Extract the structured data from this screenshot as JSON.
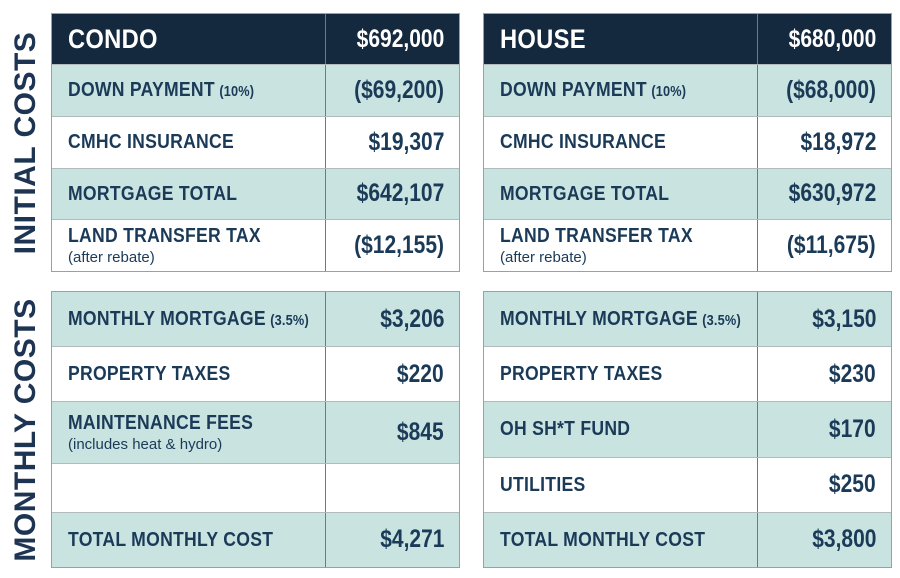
{
  "colors": {
    "header_bg": "#14293d",
    "header_text": "#ffffff",
    "teal_row": "#c9e3e0",
    "white_row": "#ffffff",
    "cell_text": "#1a3a58",
    "section_label_text": "#1d3453",
    "outer_border": "#97a2a4",
    "row_line": "#b1bbbb",
    "column_divider": "#70797c"
  },
  "sections": {
    "initial": {
      "label": "INITIAL COSTS"
    },
    "monthly": {
      "label": "MONTHLY COSTS"
    }
  },
  "tables": {
    "condo_initial": {
      "title": "CONDO",
      "price": "$692,000",
      "rows": [
        {
          "label": "DOWN PAYMENT",
          "note": "(10%)",
          "value": "($69,200)"
        },
        {
          "label": "CMHC INSURANCE",
          "value": "$19,307"
        },
        {
          "label": "MORTGAGE TOTAL",
          "value": "$642,107"
        },
        {
          "label": "LAND TRANSFER TAX",
          "sub": "(after rebate)",
          "value": "($12,155)"
        }
      ]
    },
    "house_initial": {
      "title": "HOUSE",
      "price": "$680,000",
      "rows": [
        {
          "label": "DOWN PAYMENT",
          "note": "(10%)",
          "value": "($68,000)"
        },
        {
          "label": "CMHC INSURANCE",
          "value": "$18,972"
        },
        {
          "label": "MORTGAGE TOTAL",
          "value": "$630,972"
        },
        {
          "label": "LAND TRANSFER TAX",
          "sub": "(after rebate)",
          "value": "($11,675)"
        }
      ]
    },
    "condo_monthly": {
      "rows": [
        {
          "label": "MONTHLY MORTGAGE",
          "note": "(3.5%)",
          "value": "$3,206"
        },
        {
          "label": "PROPERTY TAXES",
          "value": "$220"
        },
        {
          "label": "MAINTENANCE FEES",
          "sub": "(includes heat & hydro)",
          "value": "$845"
        },
        {
          "label": "",
          "value": ""
        },
        {
          "label": "TOTAL MONTHLY COST",
          "value": "$4,271"
        }
      ]
    },
    "house_monthly": {
      "rows": [
        {
          "label": "MONTHLY MORTGAGE",
          "note": "(3.5%)",
          "value": "$3,150"
        },
        {
          "label": "PROPERTY TAXES",
          "value": "$230"
        },
        {
          "label": "OH SH*T FUND",
          "value": "$170"
        },
        {
          "label": "UTILITIES",
          "value": "$250"
        },
        {
          "label": "TOTAL MONTHLY COST",
          "value": "$3,800"
        }
      ]
    }
  },
  "chart_data": [
    {
      "type": "table",
      "section": "INITIAL COSTS",
      "columns": [
        "CONDO",
        "HOUSE"
      ],
      "header_values": [
        "$692,000",
        "$680,000"
      ],
      "rows": [
        {
          "label": "DOWN PAYMENT (10%)",
          "condo": "($69,200)",
          "house": "($68,000)"
        },
        {
          "label": "CMHC INSURANCE",
          "condo": "$19,307",
          "house": "$18,972"
        },
        {
          "label": "MORTGAGE TOTAL",
          "condo": "$642,107",
          "house": "$630,972"
        },
        {
          "label": "LAND TRANSFER TAX (after rebate)",
          "condo": "($12,155)",
          "house": "($11,675)"
        }
      ]
    },
    {
      "type": "table",
      "section": "MONTHLY COSTS",
      "columns": [
        "CONDO",
        "HOUSE"
      ],
      "rows": [
        {
          "label": "MONTHLY MORTGAGE (3.5%)",
          "condo": "$3,206",
          "house": "$3,150"
        },
        {
          "label": "PROPERTY TAXES",
          "condo": "$220",
          "house": "$230"
        },
        {
          "label": "MAINTENANCE FEES (includes heat & hydro)",
          "condo": "$845",
          "house": null
        },
        {
          "label": "OH SH*T FUND",
          "condo": null,
          "house": "$170"
        },
        {
          "label": "UTILITIES",
          "condo": null,
          "house": "$250"
        },
        {
          "label": "TOTAL MONTHLY COST",
          "condo": "$4,271",
          "house": "$3,800"
        }
      ]
    }
  ]
}
